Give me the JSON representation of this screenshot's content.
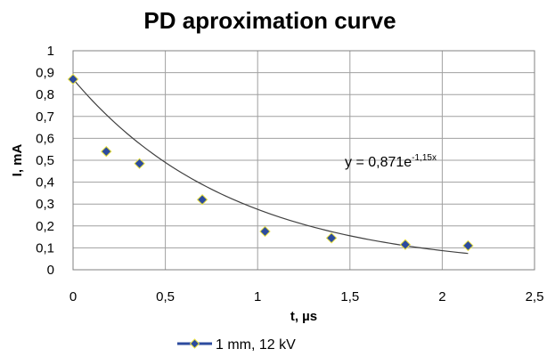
{
  "chart_data": {
    "type": "scatter",
    "title": "PD aproximation curve",
    "xlabel": "t, µs",
    "ylabel": "I, mA",
    "xlim": [
      0,
      2.5
    ],
    "ylim": [
      0,
      1
    ],
    "x_ticks": [
      "0",
      "0,5",
      "1",
      "1,5",
      "2",
      "2,5"
    ],
    "y_ticks": [
      "0",
      "0,1",
      "0,2",
      "0,3",
      "0,4",
      "0,5",
      "0,6",
      "0,7",
      "0,8",
      "0,9",
      "1"
    ],
    "x_tick_values": [
      0,
      0.5,
      1,
      1.5,
      2,
      2.5
    ],
    "y_tick_values": [
      0,
      0.1,
      0.2,
      0.3,
      0.4,
      0.5,
      0.6,
      0.7,
      0.8,
      0.9,
      1
    ],
    "grid": true,
    "legend_position": "bottom",
    "series": [
      {
        "name": "1 mm, 12 kV",
        "marker": "diamond",
        "color": "#2c4b9e",
        "marker_edge": "#e8e040",
        "x": [
          0,
          0.18,
          0.36,
          0.7,
          1.04,
          1.4,
          1.8,
          2.14
        ],
        "y": [
          0.87,
          0.54,
          0.485,
          0.32,
          0.175,
          0.145,
          0.115,
          0.11
        ]
      }
    ],
    "trendline": {
      "type": "exponential",
      "a": 0.871,
      "b": -1.15,
      "x_range": [
        0,
        2.14
      ],
      "color": "#404040",
      "label_prefix": "y = 0,871e",
      "label_exponent": "-1,15x"
    }
  }
}
